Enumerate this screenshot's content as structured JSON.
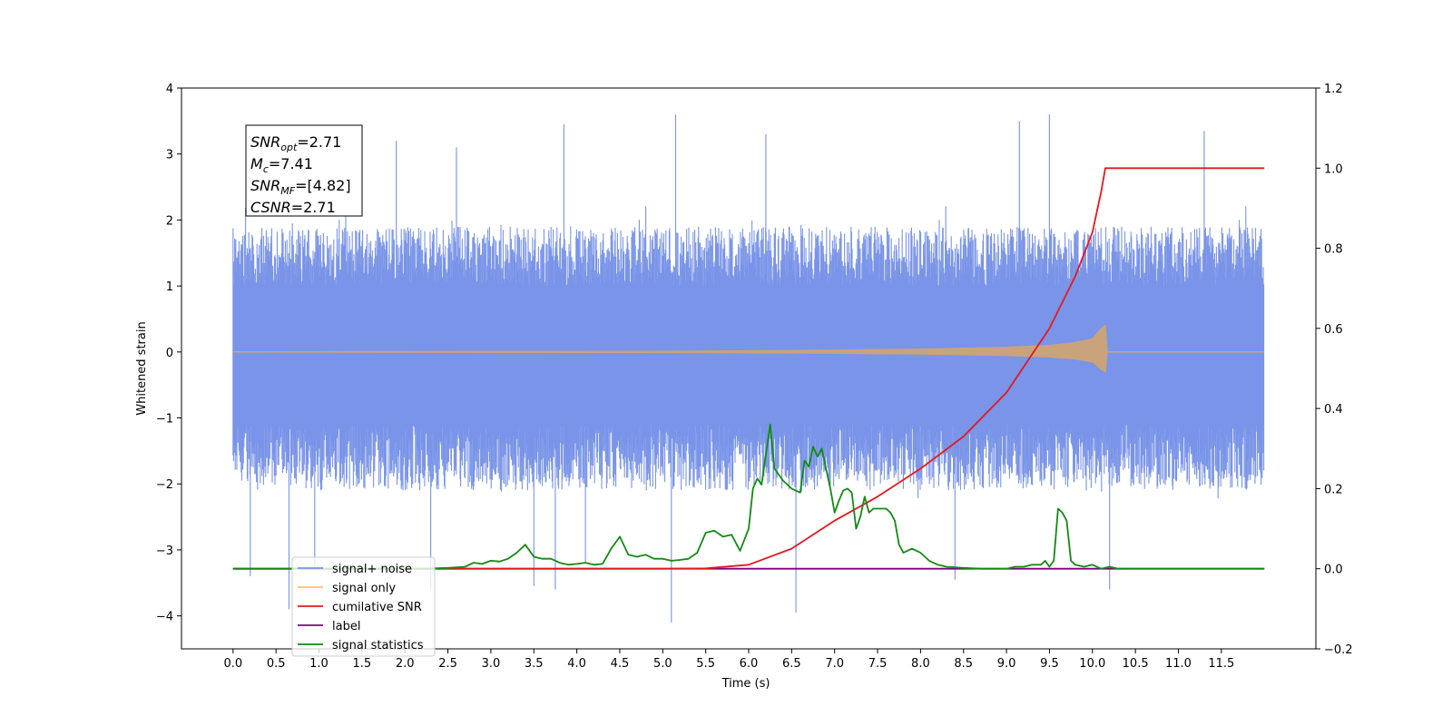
{
  "chart_data": {
    "type": "line",
    "xlabel": "Time (s)",
    "ylabel": "Whitened strain",
    "xlim": [
      -0.6,
      12.6
    ],
    "ylim": [
      -4.5,
      4.0
    ],
    "y2lim": [
      -0.2,
      1.2
    ],
    "x_ticks": [
      0.0,
      0.5,
      1.0,
      1.5,
      2.0,
      2.5,
      3.0,
      3.5,
      4.0,
      4.5,
      5.0,
      5.5,
      6.0,
      6.5,
      7.0,
      7.5,
      8.0,
      8.5,
      9.0,
      9.5,
      10.0,
      10.5,
      11.0,
      11.5
    ],
    "x_tick_labels": [
      "0.0",
      "0.5",
      "1.0",
      "1.5",
      "2.0",
      "2.5",
      "3.0",
      "3.5",
      "4.0",
      "4.5",
      "5.0",
      "5.5",
      "6.0",
      "6.5",
      "7.0",
      "7.5",
      "8.0",
      "8.5",
      "9.0",
      "9.5",
      "10.0",
      "10.5",
      "11.0",
      "11.5"
    ],
    "y_ticks": [
      4,
      3,
      2,
      1,
      0,
      -1,
      -2,
      -3,
      -4
    ],
    "y_tick_labels": [
      "4",
      "3",
      "2",
      "1",
      "0",
      "−1",
      "−2",
      "−3",
      "−4"
    ],
    "y2_ticks": [
      1.2,
      1.0,
      0.8,
      0.6,
      0.4,
      0.2,
      0.0,
      -0.2
    ],
    "y2_tick_labels": [
      "1.2",
      "1.0",
      "0.8",
      "0.6",
      "0.4",
      "0.2",
      "0.0",
      "−0.2"
    ],
    "grid": false,
    "legend_position": "lower-left",
    "annotation": {
      "lines": [
        {
          "var": "SNR",
          "sub": "opt",
          "value": "=2.71"
        },
        {
          "var": "M",
          "sub": "c",
          "value": "=7.41"
        },
        {
          "var": "SNR",
          "sub": "MF",
          "value": "=[4.82]"
        },
        {
          "var": "CSNR",
          "sub": "",
          "value": "=2.71"
        }
      ]
    },
    "series": [
      {
        "name": "signal+ noise",
        "color": "#7994e8",
        "axis": "left",
        "x_range": [
          0.0,
          12.0
        ],
        "typical_amplitude": 1.5,
        "extreme_range": [
          -4.1,
          3.6
        ],
        "extremes": [
          [
            0.2,
            -3.4
          ],
          [
            0.65,
            -3.9
          ],
          [
            0.95,
            -3.3
          ],
          [
            2.3,
            -3.6
          ],
          [
            3.5,
            -3.55
          ],
          [
            3.75,
            -3.6
          ],
          [
            5.1,
            -4.1
          ],
          [
            6.55,
            -3.95
          ],
          [
            8.4,
            -3.45
          ],
          [
            10.2,
            -3.6
          ],
          [
            1.9,
            3.2
          ],
          [
            2.6,
            3.1
          ],
          [
            3.85,
            3.45
          ],
          [
            5.15,
            3.6
          ],
          [
            6.2,
            3.3
          ],
          [
            9.15,
            3.5
          ],
          [
            9.5,
            3.6
          ],
          [
            11.3,
            3.35
          ],
          [
            4.1,
            -3.2
          ]
        ]
      },
      {
        "name": "signal only",
        "color": "#c8a37b",
        "axis": "left",
        "chirp_end_time": 10.15,
        "chirp_peak_amplitude": 0.4,
        "points": [
          [
            0.0,
            0.0
          ],
          [
            5.0,
            0.01
          ],
          [
            6.5,
            0.02
          ],
          [
            8.0,
            0.04
          ],
          [
            9.0,
            0.07
          ],
          [
            9.5,
            0.1
          ],
          [
            9.8,
            0.14
          ],
          [
            10.0,
            0.2
          ],
          [
            10.1,
            0.35
          ],
          [
            10.15,
            0.4
          ],
          [
            10.17,
            0.0
          ],
          [
            12.0,
            0.0
          ]
        ]
      },
      {
        "name": "cumilative SNR",
        "color": "#e5181d",
        "axis": "right",
        "points": [
          [
            0.0,
            0.0
          ],
          [
            5.0,
            0.0
          ],
          [
            5.5,
            0.001
          ],
          [
            6.0,
            0.01
          ],
          [
            6.5,
            0.05
          ],
          [
            7.0,
            0.12
          ],
          [
            7.5,
            0.18
          ],
          [
            8.0,
            0.25
          ],
          [
            8.5,
            0.33
          ],
          [
            9.0,
            0.44
          ],
          [
            9.5,
            0.6
          ],
          [
            9.8,
            0.73
          ],
          [
            10.0,
            0.84
          ],
          [
            10.1,
            0.94
          ],
          [
            10.15,
            1.0
          ],
          [
            12.0,
            1.0
          ]
        ]
      },
      {
        "name": "label",
        "color": "#800080",
        "axis": "right",
        "points": [
          [
            0.0,
            0.0
          ],
          [
            12.0,
            0.0
          ]
        ]
      },
      {
        "name": "signal statistics",
        "color": "#138a13",
        "axis": "right",
        "points": [
          [
            0.0,
            0.0
          ],
          [
            2.2,
            0.0
          ],
          [
            2.5,
            0.002
          ],
          [
            2.7,
            0.005
          ],
          [
            2.8,
            0.015
          ],
          [
            2.9,
            0.012
          ],
          [
            3.0,
            0.02
          ],
          [
            3.1,
            0.018
          ],
          [
            3.2,
            0.025
          ],
          [
            3.3,
            0.04
          ],
          [
            3.4,
            0.06
          ],
          [
            3.5,
            0.03
          ],
          [
            3.6,
            0.025
          ],
          [
            3.7,
            0.025
          ],
          [
            3.8,
            0.015
          ],
          [
            3.9,
            0.01
          ],
          [
            4.0,
            0.012
          ],
          [
            4.1,
            0.015
          ],
          [
            4.2,
            0.01
          ],
          [
            4.3,
            0.012
          ],
          [
            4.4,
            0.05
          ],
          [
            4.5,
            0.08
          ],
          [
            4.6,
            0.035
          ],
          [
            4.7,
            0.03
          ],
          [
            4.8,
            0.035
          ],
          [
            4.9,
            0.025
          ],
          [
            5.0,
            0.025
          ],
          [
            5.1,
            0.02
          ],
          [
            5.2,
            0.022
          ],
          [
            5.3,
            0.025
          ],
          [
            5.4,
            0.04
          ],
          [
            5.5,
            0.09
          ],
          [
            5.6,
            0.095
          ],
          [
            5.7,
            0.08
          ],
          [
            5.8,
            0.085
          ],
          [
            5.9,
            0.045
          ],
          [
            6.0,
            0.1
          ],
          [
            6.05,
            0.2
          ],
          [
            6.1,
            0.225
          ],
          [
            6.15,
            0.21
          ],
          [
            6.25,
            0.36
          ],
          [
            6.3,
            0.25
          ],
          [
            6.4,
            0.22
          ],
          [
            6.5,
            0.2
          ],
          [
            6.6,
            0.19
          ],
          [
            6.65,
            0.27
          ],
          [
            6.7,
            0.255
          ],
          [
            6.75,
            0.305
          ],
          [
            6.8,
            0.28
          ],
          [
            6.85,
            0.3
          ],
          [
            6.9,
            0.25
          ],
          [
            6.95,
            0.2
          ],
          [
            7.0,
            0.14
          ],
          [
            7.05,
            0.17
          ],
          [
            7.1,
            0.195
          ],
          [
            7.15,
            0.2
          ],
          [
            7.2,
            0.19
          ],
          [
            7.25,
            0.1
          ],
          [
            7.3,
            0.13
          ],
          [
            7.35,
            0.18
          ],
          [
            7.4,
            0.14
          ],
          [
            7.45,
            0.15
          ],
          [
            7.5,
            0.15
          ],
          [
            7.55,
            0.15
          ],
          [
            7.6,
            0.15
          ],
          [
            7.65,
            0.14
          ],
          [
            7.7,
            0.12
          ],
          [
            7.75,
            0.06
          ],
          [
            7.8,
            0.04
          ],
          [
            7.9,
            0.05
          ],
          [
            8.0,
            0.04
          ],
          [
            8.1,
            0.02
          ],
          [
            8.2,
            0.01
          ],
          [
            8.3,
            0.005
          ],
          [
            8.5,
            0.002
          ],
          [
            8.7,
            0.0
          ],
          [
            9.0,
            0.0
          ],
          [
            9.1,
            0.005
          ],
          [
            9.2,
            0.005
          ],
          [
            9.3,
            0.01
          ],
          [
            9.4,
            0.01
          ],
          [
            9.45,
            0.02
          ],
          [
            9.5,
            0.005
          ],
          [
            9.55,
            0.02
          ],
          [
            9.6,
            0.15
          ],
          [
            9.65,
            0.14
          ],
          [
            9.7,
            0.12
          ],
          [
            9.75,
            0.02
          ],
          [
            9.8,
            0.01
          ],
          [
            9.9,
            0.005
          ],
          [
            10.0,
            0.01
          ],
          [
            10.1,
            0.0
          ],
          [
            10.2,
            0.005
          ],
          [
            10.3,
            0.0
          ],
          [
            12.0,
            0.0
          ]
        ]
      }
    ]
  }
}
